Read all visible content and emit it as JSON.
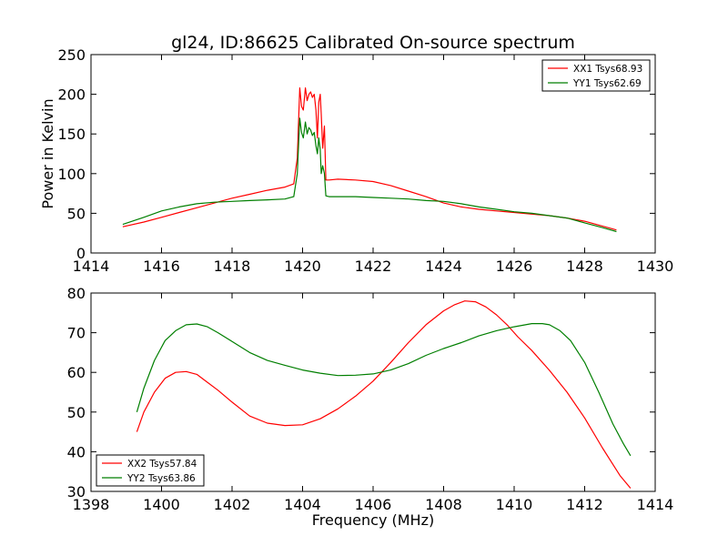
{
  "figure": {
    "title": "gl24, ID:86625 Calibrated On-source spectrum"
  },
  "colors": {
    "xx": "#ff0000",
    "yy": "#007f00"
  },
  "chart_data": [
    {
      "type": "line",
      "title": "gl24, ID:86625 Calibrated On-source spectrum",
      "xlabel": "",
      "ylabel": "Power in Kelvin",
      "xlim": [
        1414,
        1430
      ],
      "ylim": [
        0,
        250
      ],
      "xticks": [
        "1414",
        "1416",
        "1418",
        "1420",
        "1422",
        "1424",
        "1426",
        "1428",
        "1430"
      ],
      "yticks": [
        "0",
        "50",
        "100",
        "150",
        "200",
        "250"
      ],
      "legend_position": "top-right",
      "grid": false,
      "series": [
        {
          "name": "XX1 Tsys68.93",
          "color": "#ff0000",
          "x": [
            1414.9,
            1415.5,
            1416.0,
            1416.5,
            1417.0,
            1417.5,
            1418.0,
            1418.5,
            1419.0,
            1419.5,
            1419.75,
            1419.85,
            1419.92,
            1419.97,
            1420.02,
            1420.08,
            1420.13,
            1420.18,
            1420.23,
            1420.28,
            1420.33,
            1420.38,
            1420.42,
            1420.46,
            1420.5,
            1420.53,
            1420.57,
            1420.62,
            1420.66,
            1420.75,
            1421.0,
            1421.5,
            1422.0,
            1422.5,
            1423.0,
            1423.5,
            1424.0,
            1424.5,
            1425.0,
            1425.5,
            1426.0,
            1426.5,
            1427.0,
            1427.5,
            1428.0,
            1428.5,
            1428.9
          ],
          "y": [
            33,
            39,
            45,
            51,
            57,
            63,
            69,
            74,
            79,
            83,
            87,
            120,
            208,
            185,
            180,
            208,
            192,
            200,
            203,
            196,
            200,
            180,
            145,
            190,
            200,
            175,
            132,
            160,
            92,
            92,
            93,
            92,
            90,
            85,
            78,
            71,
            63,
            58,
            55,
            53,
            51,
            49,
            47,
            44,
            40,
            34,
            29
          ]
        },
        {
          "name": "YY1 Tsys62.69",
          "color": "#007f00",
          "x": [
            1414.9,
            1415.5,
            1416.0,
            1416.5,
            1417.0,
            1417.5,
            1418.0,
            1418.5,
            1419.0,
            1419.5,
            1419.75,
            1419.85,
            1419.92,
            1419.97,
            1420.02,
            1420.08,
            1420.13,
            1420.18,
            1420.23,
            1420.28,
            1420.33,
            1420.38,
            1420.42,
            1420.46,
            1420.5,
            1420.53,
            1420.57,
            1420.62,
            1420.66,
            1420.75,
            1421.0,
            1421.5,
            1422.0,
            1422.5,
            1423.0,
            1423.5,
            1424.0,
            1424.5,
            1425.0,
            1425.5,
            1426.0,
            1426.5,
            1427.0,
            1427.5,
            1428.0,
            1428.5,
            1428.9
          ],
          "y": [
            36,
            45,
            53,
            58,
            62,
            64,
            65,
            66,
            67,
            68,
            71,
            100,
            170,
            152,
            145,
            165,
            150,
            158,
            155,
            148,
            152,
            135,
            125,
            145,
            130,
            100,
            110,
            100,
            72,
            71,
            71,
            71,
            70,
            69,
            68,
            66,
            65,
            62,
            58,
            55,
            52,
            50,
            47,
            44,
            38,
            32,
            27
          ]
        }
      ]
    },
    {
      "type": "line",
      "title": "",
      "xlabel": "Frequency (MHz)",
      "ylabel": "",
      "xlim": [
        1398,
        1414
      ],
      "ylim": [
        30,
        80
      ],
      "xticks": [
        "1398",
        "1400",
        "1402",
        "1404",
        "1406",
        "1408",
        "1410",
        "1412",
        "1414"
      ],
      "yticks": [
        "30",
        "40",
        "50",
        "60",
        "70",
        "80"
      ],
      "legend_position": "bottom-left",
      "grid": false,
      "series": [
        {
          "name": "XX2 Tsys57.84",
          "color": "#ff0000",
          "x": [
            1399.3,
            1399.5,
            1399.8,
            1400.1,
            1400.4,
            1400.7,
            1401.0,
            1401.3,
            1401.6,
            1402.0,
            1402.5,
            1403.0,
            1403.5,
            1404.0,
            1404.5,
            1405.0,
            1405.5,
            1406.0,
            1406.5,
            1407.0,
            1407.5,
            1408.0,
            1408.3,
            1408.6,
            1408.9,
            1409.2,
            1409.5,
            1409.8,
            1410.1,
            1410.5,
            1411.0,
            1411.5,
            1412.0,
            1412.5,
            1413.0,
            1413.3
          ],
          "y": [
            45,
            50,
            55,
            58.5,
            60,
            60.2,
            59.5,
            57.5,
            55.5,
            52.5,
            49,
            47.2,
            46.6,
            46.8,
            48.3,
            50.8,
            54,
            57.8,
            62.5,
            67.5,
            72,
            75.5,
            77,
            78,
            77.8,
            76.5,
            74.5,
            72,
            69,
            65.5,
            60.5,
            55,
            48.5,
            41,
            34,
            30.8
          ]
        },
        {
          "name": "YY2 Tsys63.86",
          "color": "#007f00",
          "x": [
            1399.3,
            1399.5,
            1399.8,
            1400.1,
            1400.4,
            1400.7,
            1401.0,
            1401.3,
            1401.6,
            1402.0,
            1402.5,
            1403.0,
            1403.5,
            1404.0,
            1404.5,
            1405.0,
            1405.5,
            1406.0,
            1406.5,
            1407.0,
            1407.5,
            1408.0,
            1408.5,
            1409.0,
            1409.5,
            1410.0,
            1410.5,
            1410.8,
            1411.0,
            1411.3,
            1411.6,
            1412.0,
            1412.4,
            1412.8,
            1413.1,
            1413.3
          ],
          "y": [
            50,
            56,
            63,
            68,
            70.5,
            72,
            72.2,
            71.5,
            70,
            67.8,
            65,
            63,
            61.8,
            60.6,
            59.8,
            59.2,
            59.3,
            59.6,
            60.6,
            62.2,
            64.3,
            66,
            67.5,
            69.2,
            70.5,
            71.5,
            72.3,
            72.3,
            72,
            70.5,
            68,
            62.5,
            55,
            47,
            42,
            39
          ]
        }
      ]
    }
  ]
}
